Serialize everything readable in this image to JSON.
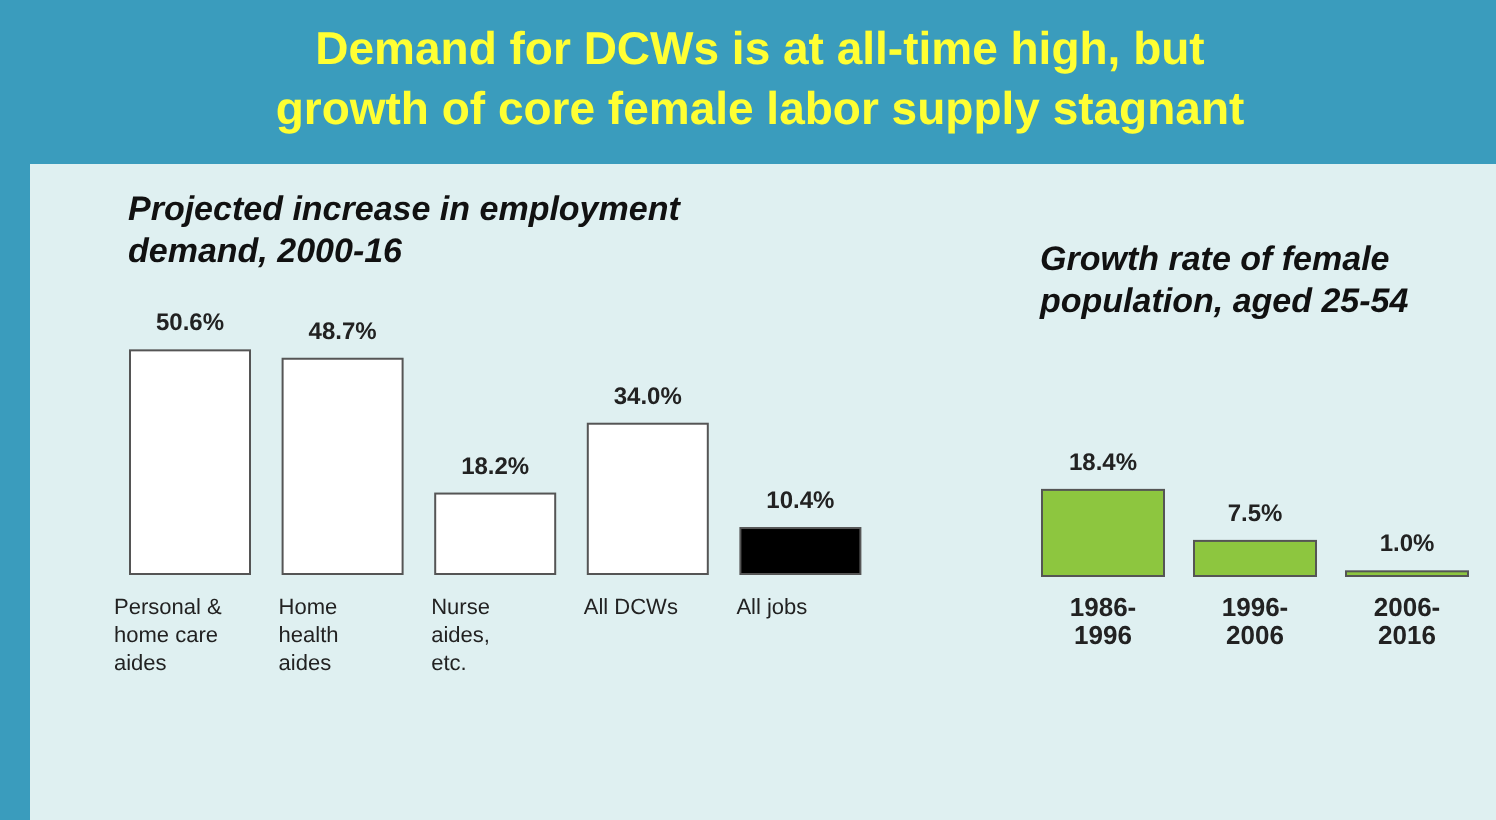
{
  "chart_data": [
    {
      "type": "bar",
      "title": "Demand for DCWs is at all-time high, but growth of core female labor supply stagnant",
      "subtitle": "Projected increase in employment demand, 2000-16",
      "categories": [
        "Personal & home care aides",
        "Home health aides",
        "Nurse aides, etc.",
        "All DCWs",
        "All jobs"
      ],
      "values": [
        50.6,
        48.7,
        18.2,
        34.0,
        10.4
      ],
      "value_labels": [
        "50.6%",
        "48.7%",
        "18.2%",
        "34.0%",
        "10.4%"
      ],
      "colors": [
        "#ffffff",
        "#ffffff",
        "#ffffff",
        "#ffffff",
        "#000000"
      ]
    },
    {
      "type": "bar",
      "title": "Growth rate of female population, aged 25-54",
      "categories": [
        "1986-1996",
        "1996-2006",
        "2006-2016"
      ],
      "values": [
        18.4,
        7.5,
        1.0
      ],
      "value_labels": [
        "18.4%",
        "7.5%",
        "1.0%"
      ],
      "colors": [
        "#8dc63f",
        "#8dc63f",
        "#8dc63f"
      ]
    }
  ]
}
